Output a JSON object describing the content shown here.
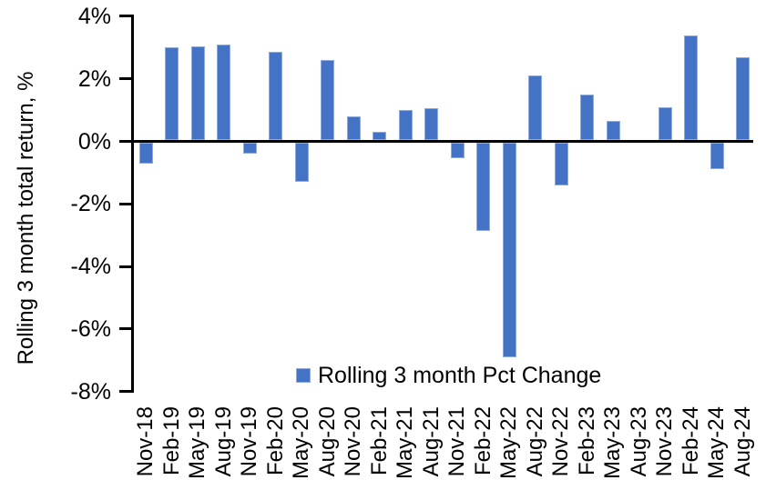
{
  "chart_data": {
    "type": "bar",
    "title": "",
    "ylabel": "Rolling 3 month total return, %",
    "xlabel": "",
    "legend": "Rolling 3 month Pct Change",
    "legend_position": "bottom-center",
    "grid": false,
    "categories": [
      "Nov-18",
      "Feb-19",
      "May-19",
      "Aug-19",
      "Nov-19",
      "Feb-20",
      "May-20",
      "Aug-20",
      "Nov-20",
      "Feb-21",
      "May-21",
      "Aug-21",
      "Nov-21",
      "Feb-22",
      "May-22",
      "Aug-22",
      "Nov-22",
      "Feb-23",
      "May-23",
      "Aug-23",
      "Nov-23",
      "Feb-24",
      "May-24",
      "Aug-24"
    ],
    "values": [
      -0.7,
      3.0,
      3.05,
      3.1,
      -0.4,
      2.85,
      -1.3,
      2.6,
      0.8,
      0.3,
      1.0,
      1.05,
      -0.55,
      -2.85,
      -6.9,
      2.1,
      -1.4,
      1.5,
      0.65,
      0.0,
      1.1,
      3.4,
      -0.9,
      2.7
    ],
    "ylim": [
      -8,
      4
    ],
    "yticks": [
      4,
      2,
      0,
      -2,
      -4,
      -6,
      -8
    ],
    "ytick_labels": [
      "4%",
      "2%",
      "0%",
      "-2%",
      "-4%",
      "-6%",
      "-8%"
    ],
    "colors": {
      "bar_fill": "#4472C4",
      "bar_border": "#8FAADC",
      "axis": "#000000",
      "text": "#000000",
      "background": "#FFFFFF"
    }
  }
}
